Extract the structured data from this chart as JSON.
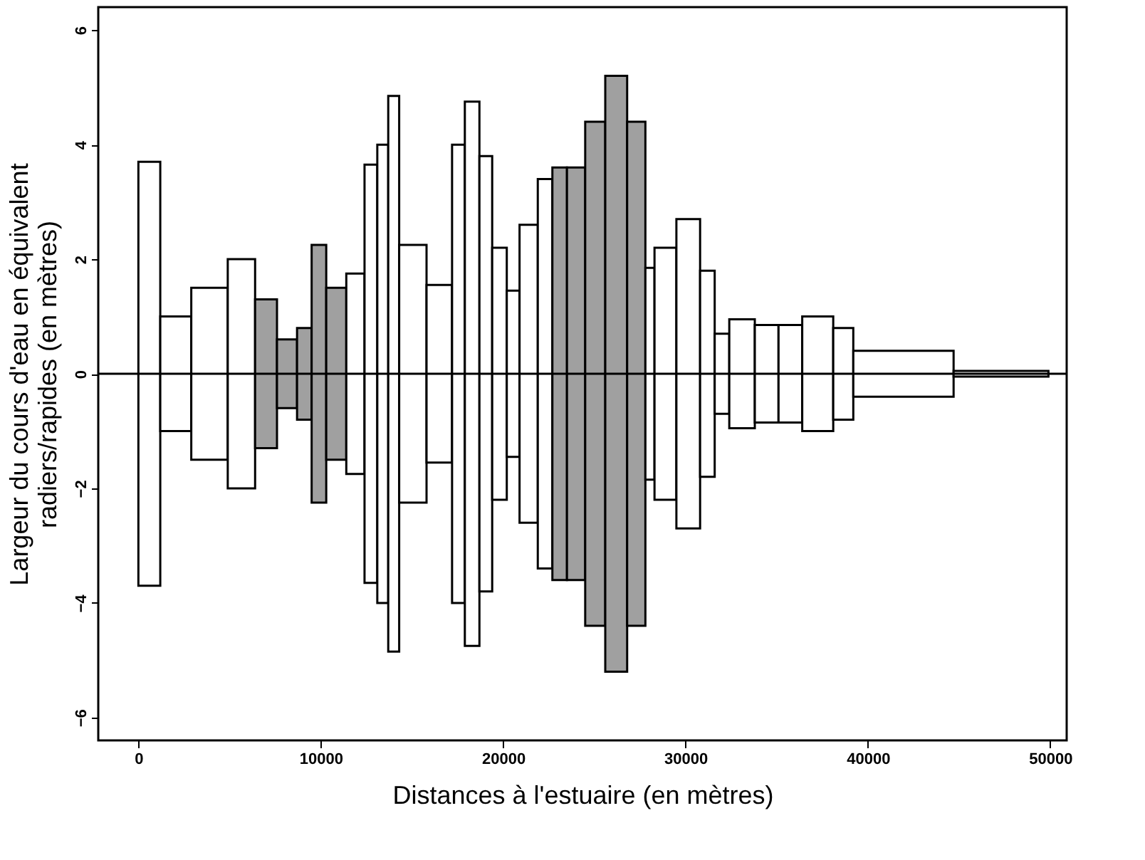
{
  "chart_data": {
    "type": "histogram",
    "xlabel": "Distances à l'estuaire (en mètres)",
    "ylabel": "Largeur du cours d'eau en équivalent\nradiers/rapides (en mètres)",
    "bins": [
      0,
      1200,
      2900,
      4900,
      6400,
      7600,
      8700,
      9500,
      10300,
      11400,
      12400,
      13100,
      13700,
      14300,
      15800,
      17200,
      17900,
      18700,
      19400,
      20200,
      20900,
      21900,
      22700,
      23500,
      24500,
      25600,
      26800,
      27800,
      28300,
      29500,
      30800,
      31600,
      32400,
      33800,
      35100,
      36400,
      38100,
      39200,
      44700,
      49900
    ],
    "values": [
      7.4,
      2.0,
      3.0,
      4.0,
      2.6,
      1.2,
      1.6,
      4.5,
      3.0,
      3.5,
      7.3,
      8.0,
      9.7,
      4.5,
      3.1,
      8.0,
      9.5,
      7.6,
      4.4,
      2.9,
      5.2,
      6.8,
      7.2,
      7.2,
      8.8,
      10.4,
      8.8,
      3.7,
      4.4,
      5.4,
      3.6,
      1.4,
      1.9,
      1.7,
      1.7,
      2.0,
      1.6,
      0.8,
      0.1
    ],
    "base": [
      -3.7,
      -1.0,
      -1.5,
      -2.0,
      -1.3,
      -0.6,
      -0.8,
      -2.25,
      -1.5,
      -1.75,
      -3.65,
      -4.0,
      -4.85,
      -2.25,
      -1.55,
      -4.0,
      -4.75,
      -3.8,
      -2.2,
      -1.45,
      -2.6,
      -3.4,
      -3.6,
      -3.6,
      -4.4,
      -5.2,
      -4.4,
      -1.85,
      -2.2,
      -2.7,
      -1.8,
      -0.7,
      -0.95,
      -0.85,
      -0.85,
      -1.0,
      -0.8,
      -0.4,
      -0.05
    ],
    "colors": [
      "#ffffff",
      "#ffffff",
      "#ffffff",
      "#ffffff",
      "#a0a0a0",
      "#a0a0a0",
      "#a0a0a0",
      "#a0a0a0",
      "#a0a0a0",
      "#ffffff",
      "#ffffff",
      "#ffffff",
      "#ffffff",
      "#ffffff",
      "#ffffff",
      "#ffffff",
      "#ffffff",
      "#ffffff",
      "#ffffff",
      "#ffffff",
      "#ffffff",
      "#ffffff",
      "#a0a0a0",
      "#a0a0a0",
      "#a0a0a0",
      "#a0a0a0",
      "#a0a0a0",
      "#ffffff",
      "#ffffff",
      "#ffffff",
      "#ffffff",
      "#ffffff",
      "#ffffff",
      "#ffffff",
      "#ffffff",
      "#ffffff",
      "#ffffff",
      "#ffffff",
      "#ffffff"
    ],
    "xlim": [
      -2200,
      50900
    ],
    "xticks": [
      0,
      10000,
      20000,
      30000,
      40000,
      50000
    ],
    "ylim": [
      -6.4,
      6.4
    ],
    "yticks": [
      -6,
      -4,
      -2,
      0,
      2,
      4,
      6
    ],
    "ref_lines": [
      {
        "axis": "y",
        "value": 0
      }
    ],
    "grid": false
  }
}
